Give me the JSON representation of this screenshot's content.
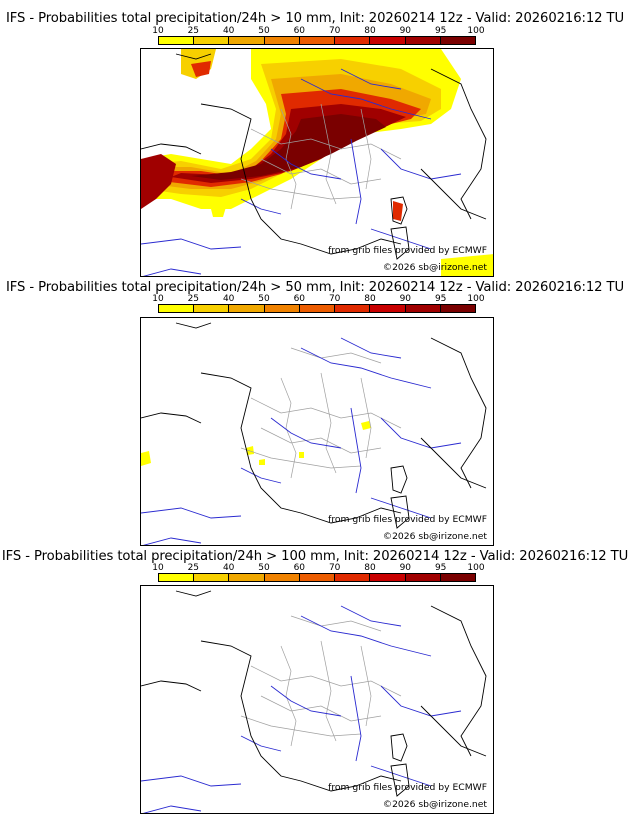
{
  "colors": {
    "scale": [
      "#ffff00",
      "#f7d000",
      "#f0a800",
      "#f08200",
      "#ec5c00",
      "#e02a00",
      "#c80000",
      "#a00000",
      "#7a0000",
      "#540000"
    ],
    "coast": "#000000",
    "rivers": "#2a2ad0",
    "admin": "#a0a0a0"
  },
  "colorbar": {
    "ticks": [
      "10",
      "25",
      "40",
      "50",
      "60",
      "70",
      "80",
      "90",
      "95",
      "100"
    ]
  },
  "panels": [
    {
      "title": "IFS - Probabilities total precipitation/24h > 10 mm, Init: 20260214 12z - Valid: 20260216:12 TU",
      "credit1": "from grib files provided by ECMWF",
      "credit2": "©2026 sb@irizone.net"
    },
    {
      "title": "IFS - Probabilities total precipitation/24h > 50 mm, Init: 20260214 12z - Valid: 20260216:12 TU",
      "credit1": "from grib files provided by ECMWF",
      "credit2": "©2026 sb@irizone.net"
    },
    {
      "title": "IFS - Probabilities total precipitation/24h > 100 mm, Init: 20260214 12z - Valid: 20260216:12 TU",
      "credit1": "from grib files provided by ECMWF",
      "credit2": "©2026 sb@irizone.net"
    }
  ]
}
